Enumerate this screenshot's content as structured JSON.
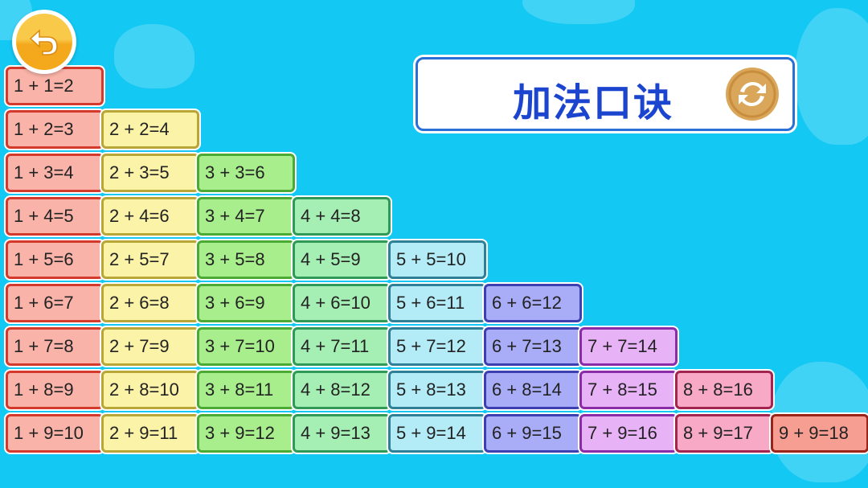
{
  "title": "加法口诀",
  "icons": {
    "back": "back-arrow-icon",
    "refresh": "refresh-icon"
  },
  "columns": [
    {
      "bg": "#f9b3a8",
      "border": "#d43a2c",
      "items": [
        "1 + 1=2",
        "1 + 2=3",
        "1 + 3=4",
        "1 + 4=5",
        "1 + 5=6",
        "1 + 6=7",
        "1 + 7=8",
        "1 + 8=9",
        "1 + 9=10"
      ]
    },
    {
      "bg": "#fbf3a8",
      "border": "#b8a637",
      "items": [
        "2 + 2=4",
        "2 + 3=5",
        "2 + 4=6",
        "2 + 5=7",
        "2 + 6=8",
        "2 + 7=9",
        "2 + 8=10",
        "2 + 9=11"
      ]
    },
    {
      "bg": "#a8ee8c",
      "border": "#4aaa33",
      "items": [
        "3 + 3=6",
        "3 + 4=7",
        "3 + 5=8",
        "3 + 6=9",
        "3 + 7=10",
        "3 + 8=11",
        "3 + 9=12"
      ]
    },
    {
      "bg": "#a6efb4",
      "border": "#2f9a57",
      "items": [
        "4 + 4=8",
        "4 + 5=9",
        "4 + 6=10",
        "4 + 7=11",
        "4 + 8=12",
        "4 + 9=13"
      ]
    },
    {
      "bg": "#b3ecf7",
      "border": "#2f7f97",
      "items": [
        "5 + 5=10",
        "5 + 6=11",
        "5 + 7=12",
        "5 + 8=13",
        "5 + 9=14"
      ]
    },
    {
      "bg": "#a9acf7",
      "border": "#3b3fb0",
      "items": [
        "6 + 6=12",
        "6 + 7=13",
        "6 + 8=14",
        "6 + 9=15"
      ]
    },
    {
      "bg": "#e8b2f7",
      "border": "#8a2ba7",
      "items": [
        "7 + 7=14",
        "7 + 8=15",
        "7 + 9=16"
      ]
    },
    {
      "bg": "#f7a9c6",
      "border": "#a3254f",
      "items": [
        "8 + 8=16",
        "8 + 9=17"
      ]
    },
    {
      "bg": "#f79e93",
      "border": "#9a2419",
      "items": [
        "9 + 9=18"
      ]
    }
  ]
}
